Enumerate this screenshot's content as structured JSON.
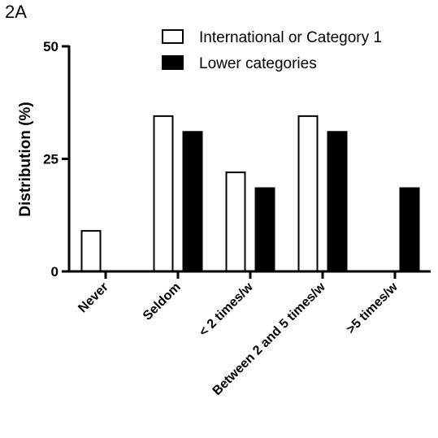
{
  "panel_label": "2A",
  "chart_data": {
    "type": "bar",
    "categories": [
      "Never",
      "Seldom",
      "< 2 times/w",
      "Between 2 and 5 times/w",
      ">5 times/w"
    ],
    "series": [
      {
        "name": "International or Category 1",
        "values": [
          9,
          34.5,
          22,
          34.5,
          0
        ],
        "fill": "#ffffff"
      },
      {
        "name": "Lower categories",
        "values": [
          0,
          31,
          18.5,
          31,
          18.5
        ],
        "fill": "#000000"
      }
    ],
    "title": "",
    "xlabel": "",
    "ylabel": "Distribution (%)",
    "ylim": [
      0,
      50
    ],
    "yticks": [
      "0",
      "25",
      "50"
    ],
    "legend": "top-right",
    "grid": false
  }
}
